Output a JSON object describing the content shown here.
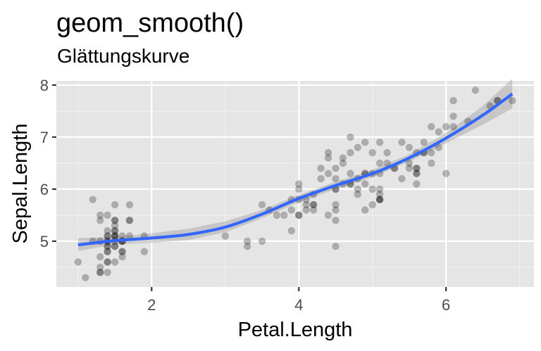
{
  "chart_data": {
    "type": "scatter",
    "title": "geom_smooth()",
    "subtitle": "Glättungskurve",
    "xlabel": "Petal.Length",
    "ylabel": "Sepal.Length",
    "xlim": [
      0.705,
      7.195
    ],
    "ylim": [
      4.12,
      8.08
    ],
    "x_ticks": [
      2,
      4,
      6
    ],
    "y_ticks": [
      5,
      6,
      7,
      8
    ],
    "grid": true,
    "background": "#e5e5e5",
    "point_color": "#000000",
    "point_alpha": 0.25,
    "smooth_color": "#3366ff",
    "ribbon_color": "#999999",
    "points": [
      [
        1.4,
        5.1
      ],
      [
        1.4,
        4.9
      ],
      [
        1.3,
        4.7
      ],
      [
        1.5,
        4.6
      ],
      [
        1.4,
        5.0
      ],
      [
        1.7,
        5.4
      ],
      [
        1.4,
        4.6
      ],
      [
        1.5,
        5.0
      ],
      [
        1.4,
        4.4
      ],
      [
        1.5,
        4.9
      ],
      [
        1.5,
        5.4
      ],
      [
        1.6,
        4.8
      ],
      [
        1.4,
        4.8
      ],
      [
        1.1,
        4.3
      ],
      [
        1.2,
        5.8
      ],
      [
        1.5,
        5.7
      ],
      [
        1.3,
        5.4
      ],
      [
        1.4,
        5.1
      ],
      [
        1.7,
        5.7
      ],
      [
        1.5,
        5.1
      ],
      [
        1.7,
        5.4
      ],
      [
        1.5,
        5.1
      ],
      [
        1.0,
        4.6
      ],
      [
        1.7,
        5.1
      ],
      [
        1.9,
        4.8
      ],
      [
        1.6,
        5.0
      ],
      [
        1.6,
        5.0
      ],
      [
        1.5,
        5.2
      ],
      [
        1.4,
        5.2
      ],
      [
        1.6,
        4.7
      ],
      [
        1.6,
        4.8
      ],
      [
        1.5,
        5.4
      ],
      [
        1.5,
        5.2
      ],
      [
        1.4,
        5.5
      ],
      [
        1.5,
        4.9
      ],
      [
        1.2,
        5.0
      ],
      [
        1.3,
        5.5
      ],
      [
        1.4,
        4.9
      ],
      [
        1.3,
        4.4
      ],
      [
        1.5,
        5.1
      ],
      [
        1.3,
        5.0
      ],
      [
        1.3,
        4.5
      ],
      [
        1.3,
        4.4
      ],
      [
        1.6,
        5.0
      ],
      [
        1.9,
        5.1
      ],
      [
        1.4,
        4.8
      ],
      [
        1.6,
        5.1
      ],
      [
        1.4,
        4.6
      ],
      [
        1.5,
        5.3
      ],
      [
        1.4,
        5.0
      ],
      [
        4.7,
        7.0
      ],
      [
        4.5,
        6.4
      ],
      [
        4.9,
        6.9
      ],
      [
        4.0,
        5.5
      ],
      [
        4.6,
        6.5
      ],
      [
        4.5,
        5.7
      ],
      [
        4.7,
        6.3
      ],
      [
        3.3,
        4.9
      ],
      [
        4.6,
        6.6
      ],
      [
        3.9,
        5.2
      ],
      [
        3.5,
        5.0
      ],
      [
        4.2,
        5.9
      ],
      [
        4.0,
        6.0
      ],
      [
        4.7,
        6.1
      ],
      [
        3.6,
        5.6
      ],
      [
        4.4,
        6.7
      ],
      [
        4.5,
        5.6
      ],
      [
        4.1,
        5.8
      ],
      [
        4.5,
        6.2
      ],
      [
        3.9,
        5.6
      ],
      [
        4.8,
        5.9
      ],
      [
        4.0,
        6.1
      ],
      [
        4.9,
        6.3
      ],
      [
        4.7,
        6.1
      ],
      [
        4.3,
        6.4
      ],
      [
        4.4,
        6.6
      ],
      [
        4.8,
        6.8
      ],
      [
        5.0,
        6.7
      ],
      [
        4.5,
        6.0
      ],
      [
        3.5,
        5.7
      ],
      [
        3.8,
        5.5
      ],
      [
        3.7,
        5.5
      ],
      [
        3.9,
        5.8
      ],
      [
        5.1,
        6.0
      ],
      [
        4.5,
        5.4
      ],
      [
        4.5,
        6.0
      ],
      [
        4.7,
        6.7
      ],
      [
        4.4,
        6.3
      ],
      [
        4.1,
        5.6
      ],
      [
        4.0,
        5.5
      ],
      [
        4.4,
        5.5
      ],
      [
        4.6,
        6.1
      ],
      [
        4.0,
        5.8
      ],
      [
        3.3,
        5.0
      ],
      [
        4.2,
        5.6
      ],
      [
        4.2,
        5.7
      ],
      [
        4.2,
        5.7
      ],
      [
        4.3,
        6.2
      ],
      [
        3.0,
        5.1
      ],
      [
        4.1,
        5.7
      ],
      [
        6.0,
        6.3
      ],
      [
        5.1,
        5.8
      ],
      [
        5.9,
        7.1
      ],
      [
        5.6,
        6.3
      ],
      [
        5.8,
        6.5
      ],
      [
        6.6,
        7.6
      ],
      [
        4.5,
        4.9
      ],
      [
        6.3,
        7.3
      ],
      [
        5.8,
        6.7
      ],
      [
        6.1,
        7.2
      ],
      [
        5.1,
        6.5
      ],
      [
        5.3,
        6.4
      ],
      [
        5.5,
        6.8
      ],
      [
        5.0,
        5.7
      ],
      [
        5.1,
        5.8
      ],
      [
        5.3,
        6.4
      ],
      [
        5.5,
        6.5
      ],
      [
        6.7,
        7.7
      ],
      [
        6.9,
        7.7
      ],
      [
        5.0,
        6.0
      ],
      [
        5.7,
        6.9
      ],
      [
        4.9,
        5.6
      ],
      [
        6.7,
        7.7
      ],
      [
        4.9,
        6.3
      ],
      [
        5.7,
        6.7
      ],
      [
        6.0,
        7.2
      ],
      [
        4.8,
        6.2
      ],
      [
        4.9,
        6.1
      ],
      [
        5.6,
        6.4
      ],
      [
        5.8,
        7.2
      ],
      [
        6.1,
        7.4
      ],
      [
        6.4,
        7.9
      ],
      [
        5.6,
        6.4
      ],
      [
        5.1,
        6.3
      ],
      [
        5.6,
        6.1
      ],
      [
        6.1,
        7.7
      ],
      [
        5.6,
        6.3
      ],
      [
        5.5,
        6.4
      ],
      [
        4.8,
        6.0
      ],
      [
        5.4,
        6.9
      ],
      [
        5.6,
        6.7
      ],
      [
        5.1,
        6.9
      ],
      [
        5.1,
        5.8
      ],
      [
        5.9,
        6.8
      ],
      [
        5.7,
        6.7
      ],
      [
        5.2,
        6.7
      ],
      [
        5.0,
        6.3
      ],
      [
        5.2,
        6.5
      ],
      [
        5.4,
        6.2
      ],
      [
        5.1,
        5.9
      ]
    ],
    "smooth": {
      "x": [
        1.0,
        1.5,
        2.0,
        2.5,
        3.0,
        3.5,
        4.0,
        4.5,
        5.0,
        5.5,
        6.0,
        6.5,
        6.9
      ],
      "y": [
        4.93,
        5.01,
        5.06,
        5.13,
        5.27,
        5.52,
        5.82,
        6.07,
        6.3,
        6.6,
        6.98,
        7.42,
        7.83
      ],
      "lower": [
        4.81,
        4.94,
        4.97,
        5.02,
        5.17,
        5.44,
        5.75,
        6.0,
        6.23,
        6.53,
        6.88,
        7.24,
        7.55
      ],
      "upper": [
        5.06,
        5.08,
        5.15,
        5.24,
        5.38,
        5.6,
        5.89,
        6.14,
        6.37,
        6.67,
        7.08,
        7.6,
        8.12
      ]
    }
  }
}
